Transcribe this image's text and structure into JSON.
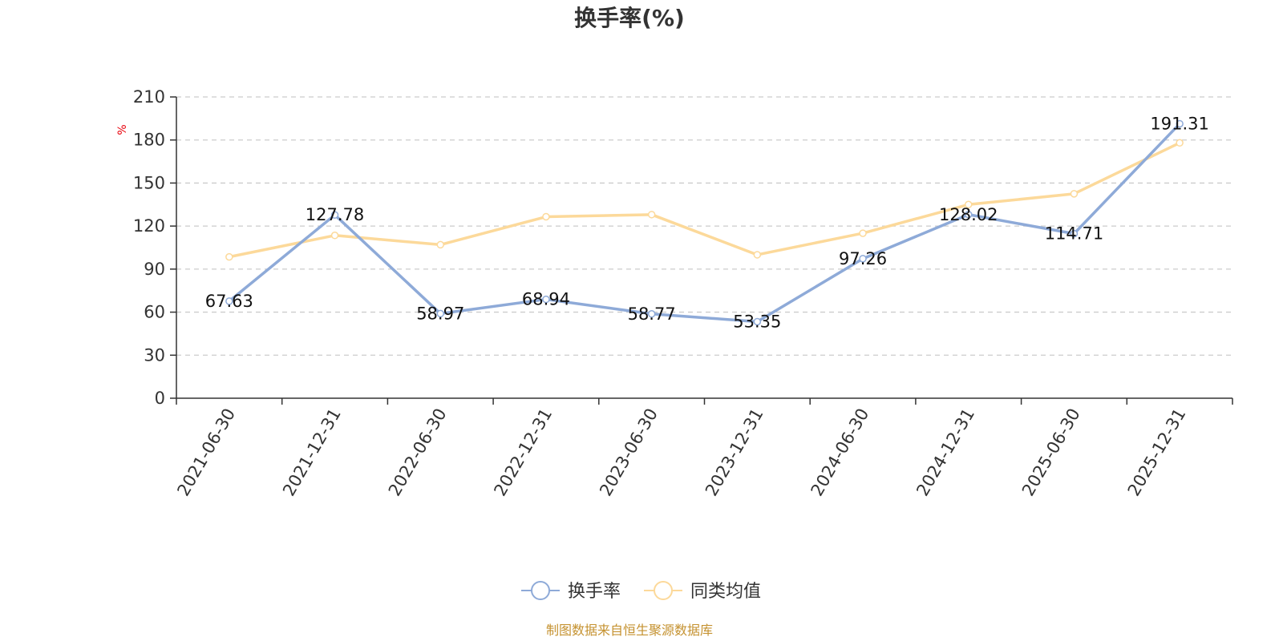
{
  "chart_data": {
    "type": "line",
    "title": "换手率(%)",
    "ylabel": "%",
    "xlabel": "",
    "ylim": [
      0,
      210
    ],
    "yticks": [
      0,
      30,
      60,
      90,
      120,
      150,
      180,
      210
    ],
    "grid": true,
    "legend_position": "bottom-center",
    "categories": [
      "2021-06-30",
      "2021-12-31",
      "2022-06-30",
      "2022-12-31",
      "2023-06-30",
      "2023-12-31",
      "2024-06-30",
      "2024-12-31",
      "2025-06-30",
      "2025-12-31"
    ],
    "series": [
      {
        "name": "换手率",
        "color": "#8eaad8",
        "values": [
          67.63,
          127.78,
          58.97,
          68.94,
          58.77,
          53.35,
          97.26,
          128.02,
          114.71,
          191.31
        ],
        "labels": [
          "67.63",
          "127.78",
          "58.97",
          "68.94",
          "58.77",
          "53.35",
          "97.26",
          "128.02",
          "114.71",
          "191.31"
        ]
      },
      {
        "name": "同类均值",
        "color": "#fcd99a",
        "values": [
          98.5,
          113.5,
          107.0,
          126.5,
          128.0,
          100.0,
          115.0,
          135.0,
          142.5,
          178.0
        ]
      }
    ],
    "source": "制图数据来自恒生聚源数据库"
  }
}
